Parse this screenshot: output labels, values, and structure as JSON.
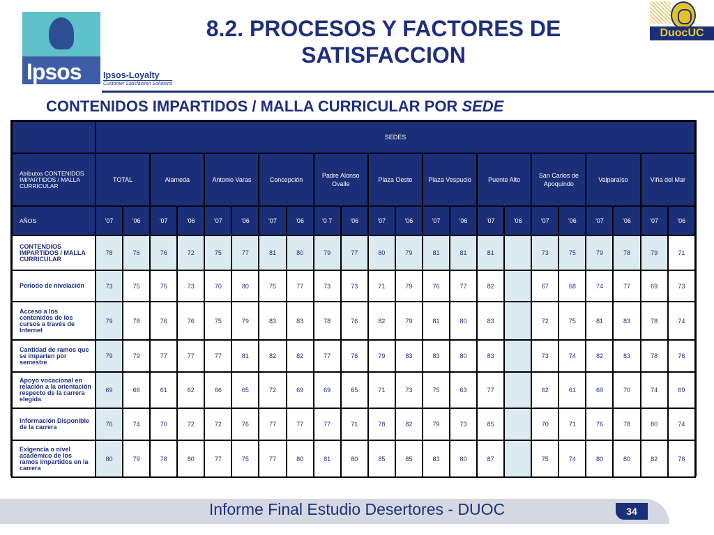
{
  "header": {
    "title_line1": "8.2. PROCESOS Y FACTORES DE",
    "title_line2": "SATISFACCION",
    "section_title_main": "CONTENIDOS IMPARTIDOS / MALLA CURRICULAR POR ",
    "section_title_italic": "SEDE"
  },
  "logos": {
    "ipsos_word": "Ipsos",
    "ipsos_loyalty": "Ipsos-Loyalty",
    "ipsos_tagline": "Customer Satisfaction Solutions",
    "duoc_word": "DuocUC"
  },
  "table": {
    "sedes_label": "SEDES",
    "attr_header": "Atributos CONTENIDOS IMPARTIDOS / MALLA CURRICULAR",
    "campuses": [
      "TOTAL",
      "Alameda",
      "Antonio Varas",
      "Concepción",
      "Padre Alonso Ovalle",
      "Plaza Oeste",
      "Plaza Vespucio",
      "Puente Alto",
      "San Carlos de Apoquindo",
      "Valparaíso",
      "Viña del Mar"
    ],
    "years_label": "AÑOS",
    "years": [
      "'07",
      "'06",
      "'07",
      "'06",
      "'07",
      "'06",
      "'07",
      "'06",
      "'0 7",
      "'06",
      "'07",
      "'06",
      "'07",
      "'06",
      "'07",
      "'06",
      "'07",
      "'06",
      "'07",
      "'06",
      "'07",
      "'06"
    ],
    "rows": [
      {
        "label": "CONTENDIOS IMPARTIDOS / MALLA CURRICULAR",
        "values": [
          "78",
          "76",
          "76",
          "72",
          "75",
          "77",
          "81",
          "80",
          "79",
          "77",
          "80",
          "79",
          "81",
          "81",
          "81",
          "",
          "73",
          "75",
          "79",
          "78",
          "79",
          "71"
        ]
      },
      {
        "label": "Periodo de nivelación",
        "values": [
          "73",
          "75",
          "75",
          "73",
          "70",
          "80",
          "75",
          "77",
          "73",
          "73",
          "71",
          "79",
          "76",
          "77",
          "82",
          "",
          "67",
          "68",
          "74",
          "77",
          "69",
          "73"
        ]
      },
      {
        "label": "Acceso a los contenidos de los cursos a través de Internet",
        "values": [
          "79",
          "78",
          "76",
          "76",
          "75",
          "79",
          "83",
          "83",
          "78",
          "76",
          "82",
          "79",
          "81",
          "80",
          "83",
          "",
          "72",
          "75",
          "81",
          "83",
          "78",
          "74"
        ]
      },
      {
        "label": "Cantidad de ramos que se imparten por semestre",
        "values": [
          "79",
          "79",
          "77",
          "77",
          "77",
          "81",
          "82",
          "82",
          "77",
          "76",
          "79",
          "83",
          "83",
          "80",
          "83",
          "",
          "73",
          "74",
          "82",
          "83",
          "78",
          "76"
        ]
      },
      {
        "label": "Apoyo vocacional en relación a la orientación respecto de la carrera elegida",
        "values": [
          "69",
          "66",
          "61",
          "62",
          "66",
          "65",
          "72",
          "69",
          "69",
          "65",
          "71",
          "73",
          "75",
          "63",
          "77",
          "",
          "62",
          "61",
          "69",
          "70",
          "74",
          "69"
        ]
      },
      {
        "label": "Información Disponible de la carrera",
        "values": [
          "76",
          "74",
          "70",
          "72",
          "72",
          "76",
          "77",
          "77",
          "77",
          "71",
          "78",
          "82",
          "79",
          "73",
          "85",
          "",
          "70",
          "71",
          "76",
          "78",
          "80",
          "74"
        ]
      },
      {
        "label": "Exigencia o nivel académico de los ramos impartidos en la carrera",
        "values": [
          "80",
          "79",
          "78",
          "80",
          "77",
          "75",
          "77",
          "80",
          "81",
          "80",
          "85",
          "85",
          "83",
          "80",
          "87",
          "",
          "75",
          "74",
          "80",
          "80",
          "82",
          "76"
        ]
      }
    ]
  },
  "footer": {
    "text": "Informe Final Estudio Desertores - DUOC",
    "page_number": "34"
  }
}
